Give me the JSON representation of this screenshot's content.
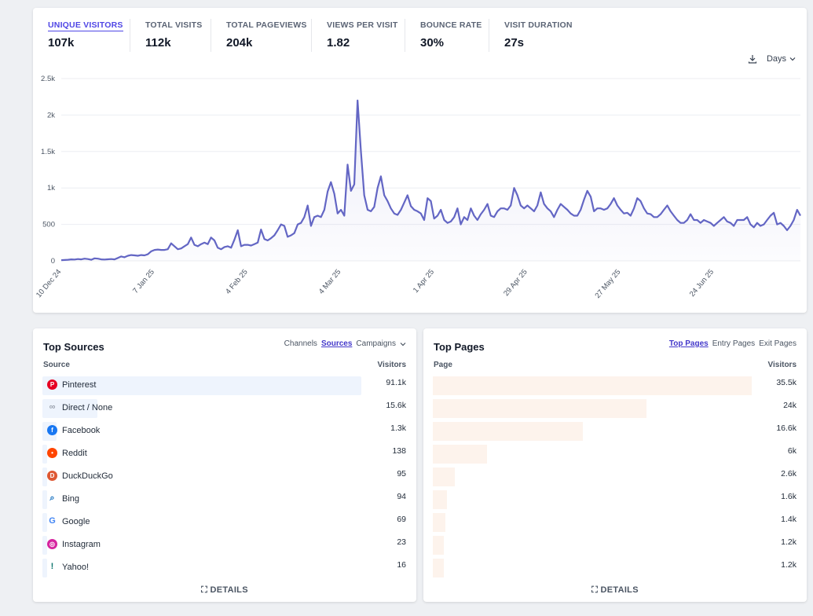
{
  "stats": [
    {
      "label": "UNIQUE VISITORS",
      "value": "107k"
    },
    {
      "label": "TOTAL VISITS",
      "value": "112k"
    },
    {
      "label": "TOTAL PAGEVIEWS",
      "value": "204k"
    },
    {
      "label": "VIEWS PER VISIT",
      "value": "1.82"
    },
    {
      "label": "BOUNCE RATE",
      "value": "30%"
    },
    {
      "label": "VISIT DURATION",
      "value": "27s"
    }
  ],
  "chart_controls": {
    "interval": "Days",
    "download_icon": "download-icon"
  },
  "chart_data": {
    "type": "area",
    "title": "",
    "xlabel": "",
    "ylabel": "",
    "ylim": [
      0,
      2500
    ],
    "y_ticks": [
      "0",
      "500",
      "1k",
      "1.5k",
      "2k",
      "2.5k"
    ],
    "x_tick_labels": [
      "10 Dec 24",
      "7 Jan 25",
      "4 Feb 25",
      "4 Mar 25",
      "1 Apr 25",
      "29 Apr 25",
      "27 May 25",
      "24 Jun 25"
    ],
    "x_start": "2024-12-10",
    "grid": true,
    "color": "#6366c4",
    "values": [
      10,
      12,
      15,
      20,
      18,
      25,
      20,
      30,
      25,
      15,
      35,
      30,
      20,
      18,
      22,
      25,
      20,
      40,
      60,
      50,
      70,
      80,
      75,
      70,
      80,
      75,
      90,
      130,
      150,
      155,
      150,
      150,
      160,
      240,
      200,
      160,
      170,
      200,
      230,
      320,
      220,
      200,
      230,
      250,
      230,
      320,
      280,
      180,
      160,
      190,
      200,
      180,
      290,
      420,
      200,
      220,
      220,
      210,
      230,
      250,
      430,
      300,
      280,
      310,
      350,
      420,
      500,
      480,
      330,
      350,
      380,
      500,
      520,
      600,
      760,
      480,
      600,
      620,
      600,
      700,
      950,
      1080,
      920,
      650,
      700,
      620,
      1320,
      960,
      1050,
      2200,
      1500,
      900,
      700,
      680,
      740,
      1000,
      1160,
      900,
      820,
      720,
      650,
      630,
      700,
      800,
      900,
      750,
      700,
      680,
      650,
      560,
      860,
      820,
      580,
      620,
      700,
      560,
      520,
      540,
      600,
      720,
      500,
      600,
      560,
      720,
      620,
      560,
      640,
      700,
      780,
      620,
      600,
      680,
      720,
      720,
      700,
      760,
      1000,
      900,
      760,
      720,
      760,
      720,
      680,
      760,
      940,
      780,
      720,
      680,
      600,
      700,
      780,
      740,
      700,
      650,
      620,
      620,
      700,
      840,
      960,
      880,
      680,
      720,
      720,
      700,
      720,
      780,
      860,
      760,
      700,
      650,
      660,
      620,
      720,
      860,
      820,
      720,
      650,
      640,
      600,
      600,
      640,
      700,
      760,
      680,
      620,
      560,
      520,
      520,
      560,
      640,
      560,
      560,
      520,
      560,
      540,
      520,
      480,
      520,
      560,
      600,
      540,
      520,
      480,
      560,
      560,
      560,
      600,
      500,
      460,
      520,
      480,
      500,
      560,
      620,
      660,
      500,
      520,
      480,
      420,
      480,
      560,
      700,
      620
    ]
  },
  "sources": {
    "title": "Top Sources",
    "tabs": [
      "Channels",
      "Sources",
      "Campaigns"
    ],
    "active_tab": "Sources",
    "col_source": "Source",
    "col_visitors": "Visitors",
    "rows": [
      {
        "label": "Pinterest",
        "value": "91.1k",
        "icon": "pinterest-icon",
        "color": "#e60023",
        "share": 1.0
      },
      {
        "label": "Direct / None",
        "value": "15.6k",
        "icon": "link-icon",
        "color": "#9ca3af",
        "share": 0.17
      },
      {
        "label": "Facebook",
        "value": "1.3k",
        "icon": "facebook-icon",
        "color": "#1877f2",
        "share": 0.015
      },
      {
        "label": "Reddit",
        "value": "138",
        "icon": "reddit-icon",
        "color": "#ff4500",
        "share": 0.004
      },
      {
        "label": "DuckDuckGo",
        "value": "95",
        "icon": "duckduckgo-icon",
        "color": "#de5833",
        "share": 0.003
      },
      {
        "label": "Bing",
        "value": "94",
        "icon": "bing-search-icon",
        "color": "#0f6cbd",
        "share": 0.003
      },
      {
        "label": "Google",
        "value": "69",
        "icon": "google-icon",
        "color": "#4285f4",
        "share": 0.002
      },
      {
        "label": "Instagram",
        "value": "23",
        "icon": "instagram-icon",
        "color": "#d6249f",
        "share": 0.002
      },
      {
        "label": "Yahoo!",
        "value": "16",
        "icon": "yahoo-icon",
        "color": "#0f766e",
        "share": 0.002
      }
    ],
    "details": "DETAILS"
  },
  "pages": {
    "title": "Top Pages",
    "tabs": [
      "Top Pages",
      "Entry Pages",
      "Exit Pages"
    ],
    "active_tab": "Top Pages",
    "col_page": "Page",
    "col_visitors": "Visitors",
    "rows": [
      {
        "value": "35.5k",
        "share": 1.0
      },
      {
        "value": "24k",
        "share": 0.67
      },
      {
        "value": "16.6k",
        "share": 0.47
      },
      {
        "value": "6k",
        "share": 0.17
      },
      {
        "value": "2.6k",
        "share": 0.07
      },
      {
        "value": "1.6k",
        "share": 0.045
      },
      {
        "value": "1.4k",
        "share": 0.04
      },
      {
        "value": "1.2k",
        "share": 0.034
      },
      {
        "value": "1.2k",
        "share": 0.034
      }
    ],
    "details": "DETAILS"
  }
}
